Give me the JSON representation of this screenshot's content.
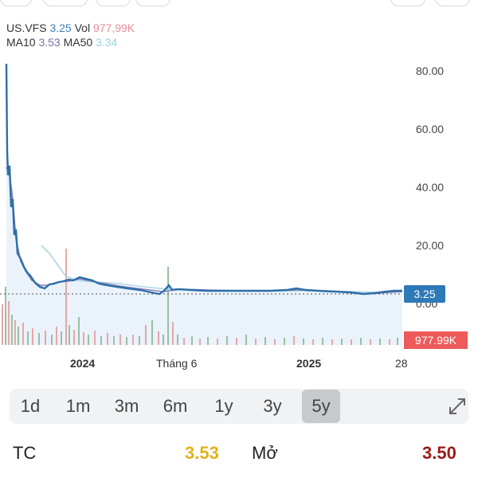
{
  "legend": {
    "symbol": "US.VFS",
    "price": "3.25",
    "vol_label": "Vol",
    "vol_value": "977,99K",
    "ma10_label": "MA10",
    "ma10_value": "3.53",
    "ma50_label": "MA50",
    "ma50_value": "3.34"
  },
  "chart": {
    "y_ticks": [
      "80.00",
      "60.00",
      "40.00",
      "20.00",
      "0.00"
    ],
    "price_tag": "3.25",
    "volume_tag": "977.99K",
    "x_ticks": [
      {
        "label": "2024",
        "bold": true
      },
      {
        "label": "Tháng 6",
        "bold": false
      },
      {
        "label": "2025",
        "bold": true
      },
      {
        "label": "28",
        "bold": false
      }
    ],
    "colors": {
      "price_line": "#2c6fa8",
      "ma10": "#8a7fb8",
      "ma50": "#a9d6e6",
      "area_fill": "#e3eefa",
      "vol_up": "#9bbfa0",
      "vol_down": "#e7a7a7"
    }
  },
  "range_selector": {
    "options": [
      "1d",
      "1m",
      "3m",
      "6m",
      "1y",
      "3y",
      "5y"
    ],
    "selected": "5y",
    "expand_icon": "expand-diagonal-icon"
  },
  "stats": {
    "left_label": "TC",
    "left_value": "3.53",
    "right_label": "Mở",
    "right_value": "3.50"
  }
}
